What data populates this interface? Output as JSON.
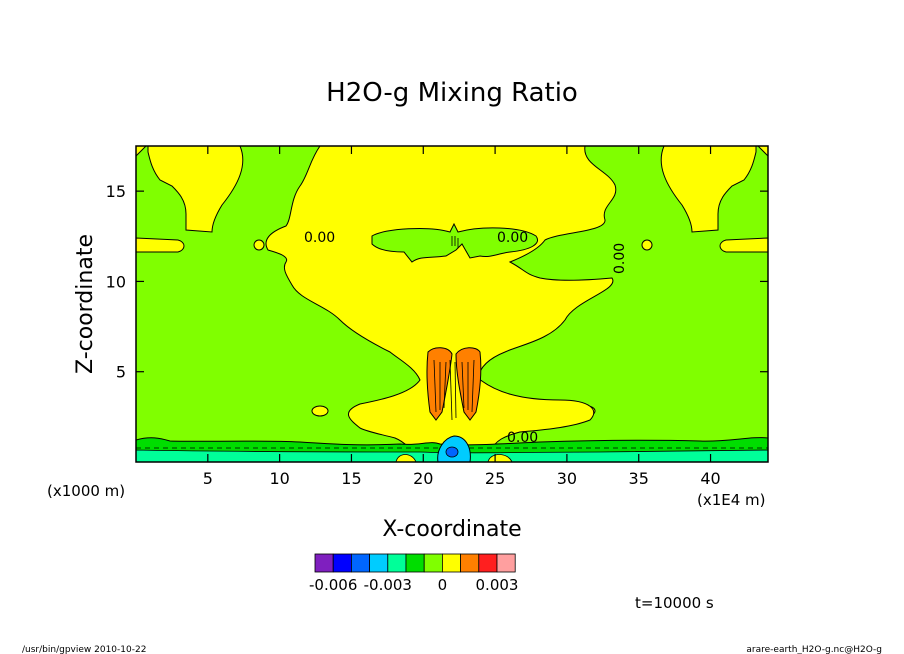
{
  "chart_data": {
    "type": "heatmap",
    "title": "H2O-g Mixing Ratio",
    "xlabel": "X-coordinate",
    "ylabel": "Z-coordinate",
    "x_unit": "(x1E4 m)",
    "y_unit": "(x1000 m)",
    "xlim": [
      0,
      44
    ],
    "ylim": [
      0,
      17.5
    ],
    "x_ticks": [
      "5",
      "10",
      "15",
      "20",
      "25",
      "30",
      "35",
      "40"
    ],
    "x_tick_values": [
      5,
      10,
      15,
      20,
      25,
      30,
      35,
      40
    ],
    "y_ticks": [
      "5",
      "10",
      "15"
    ],
    "y_tick_values": [
      5,
      10,
      15
    ],
    "contour_labels": [
      "0.00",
      "0.00",
      "0.00",
      "0.00"
    ],
    "colorbar": {
      "colors": [
        "#7f1fbf",
        "#0000ff",
        "#0066ff",
        "#00ccff",
        "#00ff99",
        "#00dd00",
        "#80ff00",
        "#ffff00",
        "#ff8000",
        "#ff1f1f",
        "#ff9f9f"
      ],
      "tick_labels": [
        "-0.006",
        "-0.003",
        "0",
        "0.003"
      ]
    },
    "time_label": "t=10000 s",
    "footer_left": "/usr/bin/gpview  2010-10-22",
    "footer_right": "arare-earth_H2O-g.nc@H2O-g"
  }
}
